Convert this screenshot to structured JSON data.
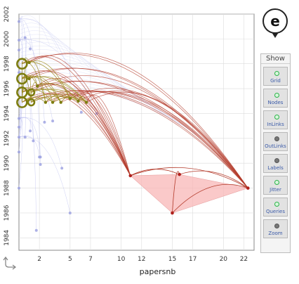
{
  "chart_data": {
    "type": "scatter",
    "title": "",
    "xlabel": "papersnb",
    "ylabel": "",
    "xlim": [
      0,
      23
    ],
    "ylim": [
      1983,
      2002
    ],
    "x_ticks": [
      2,
      5,
      7,
      10,
      12,
      15,
      17,
      20,
      22
    ],
    "y_ticks": [
      1984,
      1986,
      1988,
      1990,
      1992,
      1994,
      1996,
      1998,
      2000,
      2002
    ],
    "grid": true,
    "highlighted_nodes": [
      {
        "x": 0.3,
        "y": 1998.0,
        "size": 3
      },
      {
        "x": 0.3,
        "y": 1996.8,
        "size": 3
      },
      {
        "x": 0.3,
        "y": 1995.7,
        "size": 3
      },
      {
        "x": 0.3,
        "y": 1994.9,
        "size": 3
      },
      {
        "x": 1.2,
        "y": 1995.7,
        "size": 2
      },
      {
        "x": 1.2,
        "y": 1994.9,
        "size": 2
      },
      {
        "x": 1.0,
        "y": 1998.1,
        "size": 1
      },
      {
        "x": 1.0,
        "y": 1996.8,
        "size": 1
      },
      {
        "x": 1.8,
        "y": 1996.2,
        "size": 1
      },
      {
        "x": 2.6,
        "y": 1994.9,
        "size": 1
      },
      {
        "x": 3.3,
        "y": 1994.9,
        "size": 1
      },
      {
        "x": 4.1,
        "y": 1994.9,
        "size": 1
      },
      {
        "x": 5.0,
        "y": 1995.2,
        "size": 1
      },
      {
        "x": 5.8,
        "y": 1995.0,
        "size": 1
      },
      {
        "x": 6.6,
        "y": 1994.9,
        "size": 1
      }
    ],
    "query_nodes": [
      {
        "x": 10.9,
        "y": 1989.0
      },
      {
        "x": 15.7,
        "y": 1989.1
      },
      {
        "x": 22.4,
        "y": 1988.0
      },
      {
        "x": 15.0,
        "y": 1986.0
      }
    ],
    "background_nodes": [
      {
        "x": 0.0,
        "y": 2001.4
      },
      {
        "x": 0.0,
        "y": 1999.9
      },
      {
        "x": 0.0,
        "y": 1999.1
      },
      {
        "x": 0.0,
        "y": 1997.3
      },
      {
        "x": 0.0,
        "y": 1993.6
      },
      {
        "x": 0.0,
        "y": 1992.9
      },
      {
        "x": 0.0,
        "y": 1992.1
      },
      {
        "x": 0.0,
        "y": 1990.9
      },
      {
        "x": 0.0,
        "y": 1988.0
      },
      {
        "x": 0.6,
        "y": 2000.1
      },
      {
        "x": 0.6,
        "y": 1992.1
      },
      {
        "x": 1.1,
        "y": 1999.2
      },
      {
        "x": 1.1,
        "y": 1992.6
      },
      {
        "x": 1.4,
        "y": 1991.8
      },
      {
        "x": 2.0,
        "y": 1990.5
      },
      {
        "x": 2.1,
        "y": 1989.9
      },
      {
        "x": 2.5,
        "y": 1993.3
      },
      {
        "x": 3.3,
        "y": 1993.4
      },
      {
        "x": 4.2,
        "y": 1989.6
      },
      {
        "x": 5.0,
        "y": 1986.0
      },
      {
        "x": 6.1,
        "y": 1994.1
      },
      {
        "x": 7.6,
        "y": 1994.0
      },
      {
        "x": 1.7,
        "y": 1984.6
      },
      {
        "x": 2.1,
        "y": 1990.5
      }
    ]
  },
  "badge_letter": "e",
  "panel": {
    "title": "Show",
    "toggles": [
      {
        "label": "Grid",
        "on": true
      },
      {
        "label": "Nodes",
        "on": true
      },
      {
        "label": "InLinks",
        "on": true
      },
      {
        "label": "OutLinks",
        "on": false
      },
      {
        "label": "Labels",
        "on": false
      },
      {
        "label": "Jitter",
        "on": true
      },
      {
        "label": "Queries",
        "on": true
      },
      {
        "label": "Zoom",
        "on": false
      }
    ]
  },
  "colors": {
    "grid": "#dcdcdc",
    "highlight_node": "#7d7d10",
    "highlight_link": "#9a8a1c",
    "query_link": "#b33a2a",
    "query_fill": "#f9b7b7",
    "query_node": "#b0201c",
    "background_node": "#9a9fe0",
    "background_link": "#b7bbee"
  }
}
